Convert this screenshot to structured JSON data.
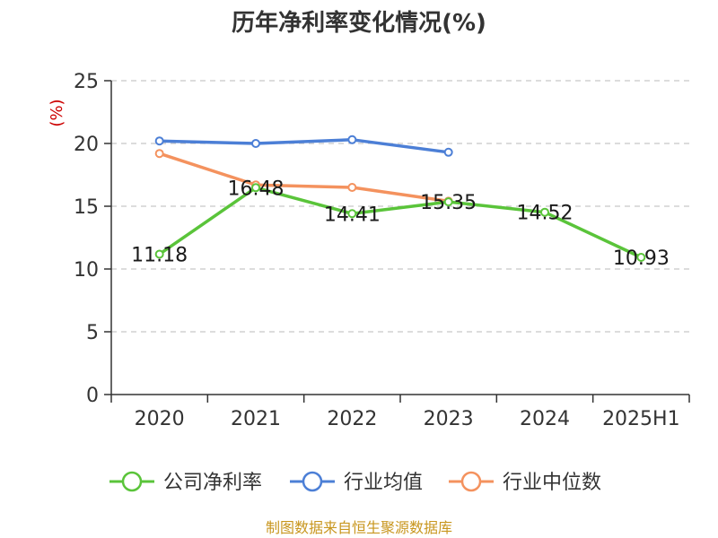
{
  "chart_data": {
    "type": "line",
    "title": "历年净利率变化情况(%)",
    "ylabel": "(%)",
    "xlabel": "",
    "categories": [
      "2020",
      "2021",
      "2022",
      "2023",
      "2024",
      "2025H1"
    ],
    "ylim": [
      0,
      25
    ],
    "yticks": [
      0,
      5,
      10,
      15,
      20,
      25
    ],
    "grid": true,
    "legend_position": "bottom",
    "series": [
      {
        "name": "公司净利率",
        "color": "#5ac43a",
        "values": [
          11.18,
          16.48,
          14.41,
          15.35,
          14.52,
          10.93
        ],
        "labels": [
          "11.18",
          "16.48",
          "14.41",
          "15.35",
          "14.52",
          "10.93"
        ]
      },
      {
        "name": "行业均值",
        "color": "#4c7fd6",
        "values": [
          20.2,
          20.0,
          20.3,
          19.3,
          null,
          null
        ]
      },
      {
        "name": "行业中位数",
        "color": "#f4925e",
        "values": [
          19.2,
          16.7,
          16.5,
          15.4,
          null,
          null
        ]
      }
    ]
  },
  "unit_color": "#cc0000",
  "source_text": "制图数据来自恒生聚源数据库",
  "source_color": "#c8961e"
}
